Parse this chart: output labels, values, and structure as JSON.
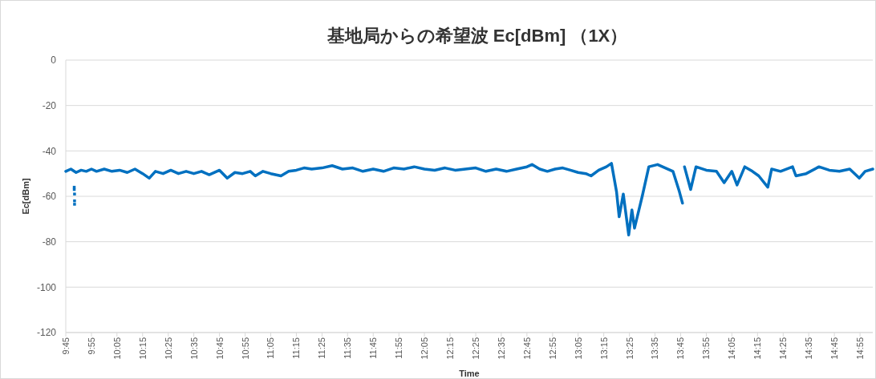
{
  "chart_data": {
    "type": "line",
    "title": "基地局からの希望波 Ec[dBm] （1X）",
    "xlabel": "Time",
    "ylabel": "Ec[dBm]",
    "xlim": [
      9.75,
      15.0
    ],
    "ylim": [
      -120,
      0
    ],
    "yticks": [
      0,
      -20,
      -40,
      -60,
      -80,
      -100,
      -120
    ],
    "xticks": [
      {
        "value": 9.75,
        "label": "9:45"
      },
      {
        "value": 9.917,
        "label": "9:55"
      },
      {
        "value": 10.083,
        "label": "10:05"
      },
      {
        "value": 10.25,
        "label": "10:15"
      },
      {
        "value": 10.417,
        "label": "10:25"
      },
      {
        "value": 10.583,
        "label": "10:35"
      },
      {
        "value": 10.75,
        "label": "10:45"
      },
      {
        "value": 10.917,
        "label": "10:55"
      },
      {
        "value": 11.083,
        "label": "11:05"
      },
      {
        "value": 11.25,
        "label": "11:15"
      },
      {
        "value": 11.417,
        "label": "11:25"
      },
      {
        "value": 11.583,
        "label": "11:35"
      },
      {
        "value": 11.75,
        "label": "11:45"
      },
      {
        "value": 11.917,
        "label": "11:55"
      },
      {
        "value": 12.083,
        "label": "12:05"
      },
      {
        "value": 12.25,
        "label": "12:15"
      },
      {
        "value": 12.417,
        "label": "12:25"
      },
      {
        "value": 12.583,
        "label": "12:35"
      },
      {
        "value": 12.75,
        "label": "12:45"
      },
      {
        "value": 12.917,
        "label": "12:55"
      },
      {
        "value": 13.083,
        "label": "13:05"
      },
      {
        "value": 13.25,
        "label": "13:15"
      },
      {
        "value": 13.417,
        "label": "13:25"
      },
      {
        "value": 13.583,
        "label": "13:35"
      },
      {
        "value": 13.75,
        "label": "13:45"
      },
      {
        "value": 13.917,
        "label": "13:55"
      },
      {
        "value": 14.083,
        "label": "14:05"
      },
      {
        "value": 14.25,
        "label": "14:15"
      },
      {
        "value": 14.417,
        "label": "14:25"
      },
      {
        "value": 14.583,
        "label": "14:35"
      },
      {
        "value": 14.75,
        "label": "14:45"
      },
      {
        "value": 14.917,
        "label": "14:55"
      }
    ],
    "grid": "y",
    "series": [
      {
        "color": "#0070c0",
        "x": [
          9.75,
          9.783,
          9.817,
          9.85,
          9.883,
          9.917,
          9.95,
          10.0,
          10.05,
          10.1,
          10.15,
          10.2,
          10.25,
          10.293,
          10.333,
          10.383,
          10.433,
          10.483,
          10.533,
          10.583,
          10.633,
          10.683,
          10.75,
          10.8,
          10.85,
          10.9,
          10.95,
          10.983,
          11.033,
          11.083,
          11.15,
          11.2,
          11.25,
          11.3,
          11.35,
          11.417,
          11.483,
          11.55,
          11.617,
          11.683,
          11.75,
          11.817,
          11.883,
          11.95,
          12.017,
          12.083,
          12.15,
          12.217,
          12.283,
          12.35,
          12.417,
          12.483,
          12.55,
          12.617,
          12.683,
          12.75,
          12.783,
          12.833,
          12.883,
          12.933,
          12.983,
          13.033,
          13.083,
          13.133,
          13.167,
          13.217,
          13.267,
          13.3,
          13.333,
          13.35,
          13.377,
          13.412,
          13.433,
          13.45,
          13.5,
          13.543,
          13.6,
          13.65,
          13.7,
          13.742,
          13.762,
          13.768,
          13.775,
          13.815,
          13.85,
          13.917,
          13.983,
          14.033,
          14.083,
          14.117,
          14.167,
          14.217,
          14.258,
          14.317,
          14.342,
          14.4,
          14.478,
          14.5,
          14.567,
          14.65,
          14.717,
          14.783,
          14.85,
          14.912,
          14.95,
          15.0
        ],
        "values": [
          -49,
          -48,
          -49.5,
          -48.5,
          -49,
          -48,
          -49,
          -48,
          -49,
          -48.5,
          -49.5,
          -48,
          -50,
          -52,
          -49,
          -50,
          -48.5,
          -50,
          -49,
          -50,
          -49,
          -50.5,
          -48.5,
          -52,
          -49.5,
          -50,
          -49,
          -51,
          -49,
          -50,
          -51,
          -49,
          -48.5,
          -47.5,
          -48,
          -47.5,
          -46.5,
          -48,
          -47.5,
          -49,
          -48,
          -49,
          -47.5,
          -48,
          -47,
          -48,
          -48.5,
          -47.5,
          -48.5,
          -48,
          -47.5,
          -49,
          -48,
          -49,
          -48,
          -47,
          -46,
          -48,
          -49,
          -48,
          -47.5,
          -48.5,
          -49.5,
          -50,
          -51,
          -48.5,
          -47,
          -45.5,
          -58,
          -69,
          -59,
          -77,
          -66,
          -74,
          -60,
          -47,
          -46,
          -47.5,
          -49,
          -58,
          -63,
          null,
          -47,
          -57,
          -47,
          -48.5,
          -49,
          -54,
          -49,
          -55,
          -47,
          -49,
          -51,
          -56,
          -48,
          -49,
          -47,
          -51,
          -50,
          -47,
          -48.5,
          -49,
          -48,
          -52,
          -49,
          -48
        ]
      },
      {
        "type": "scatter",
        "marker": "square",
        "color": "#0070c0",
        "x": [
          9.805,
          9.805,
          9.807,
          9.807,
          9.807
        ],
        "values": [
          -56,
          -57,
          -59,
          -62,
          -63.5
        ]
      }
    ]
  }
}
